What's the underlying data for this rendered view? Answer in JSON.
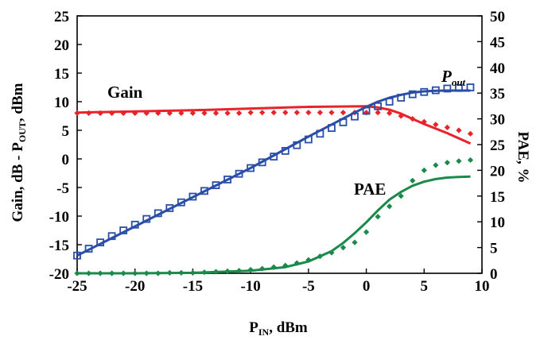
{
  "chart_data": {
    "type": "line",
    "xlabel": "P",
    "xlabel_sub": "IN",
    "xlabel_unit": ", dBm",
    "ylabel_left": "Gain, dB - P",
    "ylabel_left_sub": "OUT",
    "ylabel_left_unit": ", dBm",
    "ylabel_right": "PAE, %",
    "xlim": [
      -25,
      10
    ],
    "ylim_left": [
      -20,
      25
    ],
    "ylim_right": [
      0,
      50
    ],
    "x_ticks": [
      "-25",
      "-20",
      "-15",
      "-10",
      "-5",
      "0",
      "5",
      "10"
    ],
    "y_left_ticks": [
      "-20",
      "-15",
      "-10",
      "-5",
      "0",
      "5",
      "10",
      "15",
      "20",
      "25"
    ],
    "y_right_ticks": [
      "0",
      "5",
      "10",
      "15",
      "20",
      "25",
      "30",
      "35",
      "40",
      "45",
      "50"
    ],
    "grid": false,
    "annotations": {
      "gain": "Gain",
      "pout": "P",
      "pout_sub": "out",
      "pae": "PAE"
    },
    "colors": {
      "gain": "#e8232a",
      "pout": "#2a4ea8",
      "pae": "#1a8a4a"
    },
    "series": [
      {
        "axis": "left",
        "kind": "line",
        "color_key": "gain",
        "x": [
          -25,
          -20,
          -15,
          -10,
          -5,
          0,
          1,
          2,
          3,
          4,
          5,
          6,
          7,
          8,
          9
        ],
        "y": [
          8.1,
          8.3,
          8.5,
          8.8,
          9.1,
          9.2,
          9.0,
          8.6,
          7.9,
          7.0,
          6.1,
          5.3,
          4.5,
          3.6,
          2.7
        ]
      },
      {
        "axis": "left",
        "kind": "markers",
        "marker": "diamond-filled",
        "color_key": "gain",
        "x": [
          -25,
          -24,
          -23,
          -22,
          -21,
          -20,
          -19,
          -18,
          -17,
          -16,
          -15,
          -14,
          -13,
          -12,
          -11,
          -10,
          -9,
          -8,
          -7,
          -6,
          -5,
          -4,
          -3,
          -2,
          -1,
          0,
          1,
          2,
          3,
          4,
          5,
          6,
          7,
          8,
          9
        ],
        "y": [
          8.0,
          8.0,
          8.0,
          8.0,
          8.0,
          8.0,
          8.0,
          8.0,
          8.0,
          8.0,
          8.0,
          8.0,
          8.0,
          8.0,
          8.0,
          8.1,
          8.1,
          8.1,
          8.1,
          8.1,
          8.1,
          8.1,
          8.1,
          8.1,
          8.1,
          8.1,
          8.1,
          8.0,
          7.5,
          7.0,
          6.5,
          6.0,
          5.5,
          5.0,
          4.4
        ]
      },
      {
        "axis": "left",
        "kind": "line",
        "color_key": "pout",
        "x": [
          -25,
          -20,
          -15,
          -10,
          -5,
          -3,
          -1,
          0,
          1,
          2,
          3,
          4,
          5,
          6,
          7,
          8,
          9
        ],
        "y": [
          -16.9,
          -11.8,
          -6.7,
          -1.6,
          3.9,
          6.0,
          8.1,
          9.1,
          10.0,
          10.7,
          11.2,
          11.6,
          11.8,
          11.9,
          11.95,
          11.95,
          11.95
        ]
      },
      {
        "axis": "left",
        "kind": "markers",
        "marker": "square-open",
        "color_key": "pout",
        "x": [
          -25,
          -24,
          -23,
          -22,
          -21,
          -20,
          -19,
          -18,
          -17,
          -16,
          -15,
          -14,
          -13,
          -12,
          -11,
          -10,
          -9,
          -8,
          -7,
          -6,
          -5,
          -4,
          -3,
          -2,
          -1,
          0,
          1,
          2,
          3,
          4,
          5,
          6,
          7,
          8,
          9
        ],
        "y": [
          -16.9,
          -15.7,
          -14.6,
          -13.5,
          -12.5,
          -11.5,
          -10.5,
          -9.5,
          -8.6,
          -7.6,
          -6.6,
          -5.6,
          -4.6,
          -3.6,
          -2.6,
          -1.6,
          -0.6,
          0.4,
          1.4,
          2.4,
          3.4,
          4.4,
          5.4,
          6.4,
          7.4,
          8.4,
          9.2,
          10.0,
          10.7,
          11.3,
          11.7,
          12.0,
          12.3,
          12.4,
          12.5
        ]
      },
      {
        "axis": "right",
        "kind": "line",
        "color_key": "pae",
        "x": [
          -25,
          -20,
          -15,
          -10,
          -7,
          -5,
          -3,
          -2,
          -1,
          0,
          1,
          2,
          3,
          4,
          5,
          6,
          7,
          8,
          9
        ],
        "y": [
          0.0,
          0.0,
          0.1,
          0.5,
          1.2,
          2.3,
          4.3,
          5.9,
          7.8,
          9.9,
          12.2,
          14.3,
          15.8,
          17.0,
          17.8,
          18.3,
          18.6,
          18.7,
          18.8
        ]
      },
      {
        "axis": "right",
        "kind": "markers",
        "marker": "diamond-filled",
        "color_key": "pae",
        "x": [
          -25,
          -24,
          -23,
          -22,
          -21,
          -20,
          -19,
          -18,
          -17,
          -16,
          -15,
          -14,
          -13,
          -12,
          -11,
          -10,
          -9,
          -8,
          -7,
          -6,
          -5,
          -4,
          -3,
          -2,
          -1,
          0,
          1,
          2,
          3,
          4,
          5,
          6,
          7,
          8,
          9
        ],
        "y": [
          0.0,
          0.0,
          0.0,
          0.0,
          0.0,
          0.0,
          0.0,
          0.0,
          0.1,
          0.1,
          0.1,
          0.2,
          0.3,
          0.4,
          0.5,
          0.7,
          0.9,
          1.2,
          1.5,
          2.0,
          2.6,
          3.3,
          4.0,
          5.0,
          6.0,
          8.0,
          11.0,
          13.0,
          15.0,
          18.0,
          20.0,
          21.0,
          21.5,
          21.8,
          22.0
        ]
      }
    ]
  }
}
